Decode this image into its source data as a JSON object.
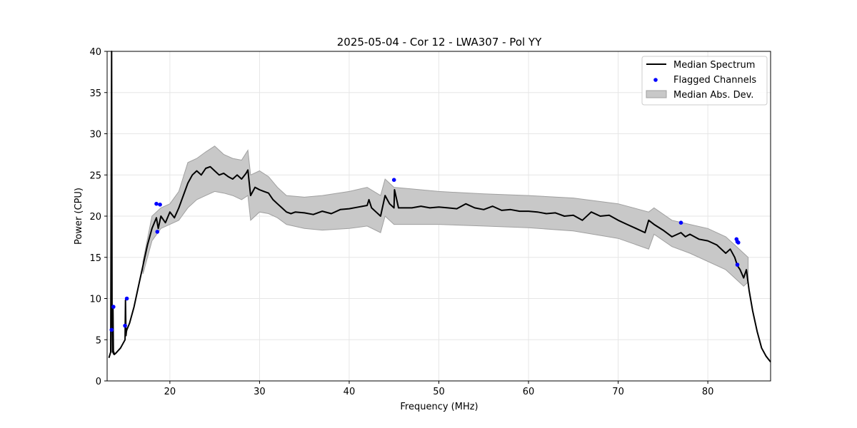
{
  "chart_data": {
    "type": "line",
    "title": "2025-05-04 - Cor 12 - LWA307 - Pol YY",
    "xlabel": "Frequency (MHz)",
    "ylabel": "Power (CPU)",
    "xlim": [
      13,
      87
    ],
    "ylim": [
      0,
      40
    ],
    "xticks": [
      20,
      30,
      40,
      50,
      60,
      70,
      80
    ],
    "yticks": [
      0,
      5,
      10,
      15,
      20,
      25,
      30,
      35,
      40
    ],
    "grid": true,
    "legend_position": "top-right",
    "colors": {
      "median": "#000000",
      "flagged": "#0000ff",
      "mad_fill": "#c8c8c8",
      "mad_edge": "#a0a0a0"
    },
    "series": [
      {
        "name": "Median Spectrum",
        "kind": "line",
        "x": [
          13.2,
          13.4,
          13.5,
          13.55,
          13.6,
          13.65,
          13.7,
          13.75,
          13.8,
          14.0,
          14.5,
          15.0,
          15.05,
          15.1,
          15.15,
          15.2,
          15.5,
          16.0,
          16.5,
          17.0,
          17.5,
          18.0,
          18.5,
          18.7,
          19.0,
          19.5,
          20.0,
          20.5,
          21.0,
          21.5,
          22.0,
          22.5,
          23.0,
          23.5,
          24.0,
          24.5,
          25.0,
          25.5,
          26.0,
          26.5,
          27.0,
          27.5,
          28.0,
          28.5,
          28.7,
          29.0,
          29.5,
          30.0,
          30.5,
          31.0,
          31.5,
          32.0,
          32.5,
          33.0,
          33.5,
          34.0,
          35.0,
          36.0,
          37.0,
          38.0,
          39.0,
          40.0,
          41.0,
          42.0,
          42.2,
          42.5,
          43.0,
          43.5,
          44.0,
          44.5,
          45.0,
          45.05,
          45.5,
          46.0,
          47.0,
          48.0,
          49.0,
          50.0,
          51.0,
          52.0,
          53.0,
          54.0,
          55.0,
          56.0,
          57.0,
          58.0,
          59.0,
          60.0,
          61.0,
          62.0,
          63.0,
          64.0,
          65.0,
          66.0,
          67.0,
          68.0,
          69.0,
          70.0,
          71.0,
          72.0,
          73.0,
          73.4,
          74.0,
          75.0,
          76.0,
          77.0,
          77.5,
          78.0,
          79.0,
          80.0,
          81.0,
          82.0,
          82.5,
          83.0,
          83.3,
          83.6,
          84.0,
          84.3,
          84.6,
          85.0,
          85.5,
          86.0,
          86.5,
          87.0
        ],
        "y": [
          2.8,
          3.5,
          40,
          9,
          3.5,
          8.8,
          3.3,
          3.5,
          3.2,
          3.4,
          4.0,
          5.0,
          9.8,
          5.5,
          6.0,
          6.2,
          7.0,
          9.0,
          11.5,
          14.0,
          16.5,
          18.5,
          19.8,
          18.5,
          20.0,
          19.2,
          20.5,
          19.8,
          21.0,
          22.5,
          24.0,
          25.0,
          25.5,
          25.0,
          25.8,
          26.0,
          25.5,
          25.0,
          25.2,
          24.8,
          24.5,
          25.0,
          24.5,
          25.2,
          25.6,
          22.5,
          23.5,
          23.2,
          23.0,
          22.8,
          22.0,
          21.5,
          21.0,
          20.5,
          20.3,
          20.5,
          20.4,
          20.2,
          20.6,
          20.3,
          20.8,
          20.9,
          21.1,
          21.3,
          22.0,
          21.0,
          20.5,
          20.0,
          22.5,
          21.5,
          21.0,
          23.2,
          21.0,
          21.0,
          21.0,
          21.2,
          21.0,
          21.1,
          21.0,
          20.9,
          21.5,
          21.0,
          20.8,
          21.2,
          20.7,
          20.8,
          20.6,
          20.6,
          20.5,
          20.3,
          20.4,
          20.0,
          20.1,
          19.5,
          20.5,
          20.0,
          20.1,
          19.5,
          19.0,
          18.5,
          18.0,
          19.5,
          19.0,
          18.3,
          17.5,
          18.0,
          17.5,
          17.8,
          17.2,
          17.0,
          16.5,
          15.5,
          16.0,
          15.0,
          14.0,
          13.5,
          12.5,
          13.5,
          11.0,
          8.5,
          6.0,
          4.0,
          3.0,
          2.3
        ],
        "line_width": 2
      },
      {
        "name": "Median Abs. Dev.",
        "kind": "band",
        "x": [
          17.0,
          18.0,
          19.0,
          20.0,
          21.0,
          22.0,
          23.0,
          24.0,
          25.0,
          26.0,
          27.0,
          28.0,
          28.7,
          29.0,
          30.0,
          31.0,
          32.0,
          33.0,
          35.0,
          37.0,
          40.0,
          42.0,
          43.5,
          44.0,
          45.0,
          47.0,
          50.0,
          55.0,
          60.0,
          65.0,
          70.0,
          73.4,
          74.0,
          76.0,
          78.0,
          80.0,
          82.0,
          83.0,
          84.0,
          84.5
        ],
        "lower": [
          13.0,
          17.0,
          18.5,
          19.0,
          19.5,
          21.0,
          22.0,
          22.5,
          23.0,
          22.8,
          22.5,
          22.0,
          22.5,
          19.5,
          20.5,
          20.3,
          19.8,
          19.0,
          18.5,
          18.3,
          18.5,
          18.8,
          18.0,
          20.0,
          19.0,
          19.0,
          19.0,
          18.8,
          18.6,
          18.2,
          17.3,
          16.0,
          17.8,
          16.3,
          15.5,
          14.5,
          13.5,
          12.5,
          11.5,
          12.0
        ],
        "upper": [
          14.5,
          20.0,
          21.0,
          21.5,
          23.0,
          26.5,
          27.0,
          27.8,
          28.5,
          27.5,
          27.0,
          26.8,
          28.0,
          25.0,
          25.5,
          24.8,
          23.5,
          22.5,
          22.3,
          22.5,
          23.0,
          23.5,
          22.5,
          24.5,
          23.5,
          23.3,
          23.0,
          22.7,
          22.5,
          22.2,
          21.5,
          20.5,
          21.0,
          19.5,
          19.0,
          18.5,
          17.5,
          16.5,
          15.5,
          15.0
        ]
      },
      {
        "name": "Flagged Channels",
        "kind": "scatter",
        "x": [
          13.5,
          13.7,
          15.0,
          15.2,
          18.5,
          18.6,
          18.9,
          45.0,
          77.0,
          83.2,
          83.3,
          83.4,
          83.3
        ],
        "y": [
          6.2,
          9.0,
          6.7,
          10.0,
          21.5,
          18.1,
          21.4,
          24.4,
          19.2,
          17.2,
          16.9,
          16.8,
          14.1
        ]
      }
    ],
    "legend": [
      {
        "label": "Median Spectrum",
        "kind": "line"
      },
      {
        "label": "Flagged Channels",
        "kind": "scatter"
      },
      {
        "label": "Median Abs. Dev.",
        "kind": "band"
      }
    ]
  }
}
